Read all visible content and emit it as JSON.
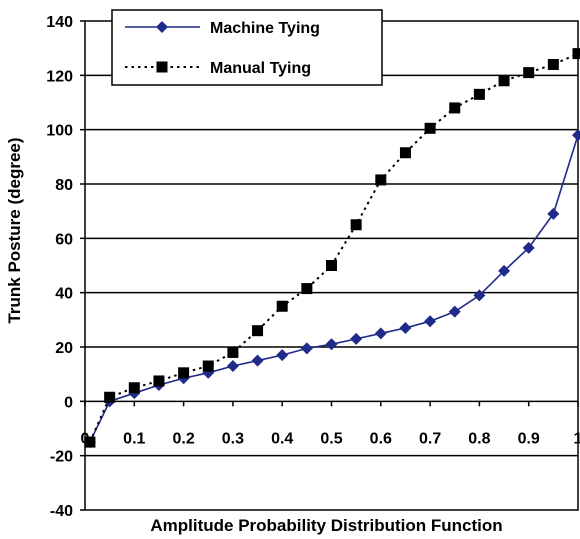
{
  "chart_data": {
    "type": "line",
    "title": "",
    "xlabel": "Amplitude Probability Distribution Function",
    "ylabel": "Trunk Posture (degree)",
    "xlim": [
      0,
      1
    ],
    "ylim": [
      -40,
      140
    ],
    "x_ticks": [
      "0",
      "0.1",
      "0.2",
      "0.3",
      "0.4",
      "0.5",
      "0.6",
      "0.7",
      "0.8",
      "0.9",
      "1"
    ],
    "y_ticks": [
      "-40",
      "-20",
      "0",
      "20",
      "40",
      "60",
      "80",
      "100",
      "120",
      "140"
    ],
    "grid": "horizontal major gridlines",
    "legend_position": "top-left",
    "series": [
      {
        "name": "Machine Tying",
        "marker": "diamond",
        "line_style": "solid",
        "color": "#1f2a8a",
        "x": [
          0.01,
          0.05,
          0.1,
          0.15,
          0.2,
          0.25,
          0.3,
          0.35,
          0.4,
          0.45,
          0.5,
          0.55,
          0.6,
          0.65,
          0.7,
          0.75,
          0.8,
          0.85,
          0.9,
          0.95,
          1.0
        ],
        "y": [
          -15,
          0,
          3,
          6,
          8.5,
          10.5,
          13,
          15,
          17,
          19.5,
          21,
          23,
          25,
          27,
          29.5,
          33,
          39,
          48,
          56.5,
          69,
          98
        ]
      },
      {
        "name": "Manual Tying",
        "marker": "square",
        "line_style": "dotted",
        "color": "#000000",
        "x": [
          0.01,
          0.05,
          0.1,
          0.15,
          0.2,
          0.25,
          0.3,
          0.35,
          0.4,
          0.45,
          0.5,
          0.55,
          0.6,
          0.65,
          0.7,
          0.75,
          0.8,
          0.85,
          0.9,
          0.95,
          1.0
        ],
        "y": [
          -15,
          1.5,
          5,
          7.5,
          10.5,
          13,
          18,
          26,
          35,
          41.5,
          50,
          65,
          81.5,
          91.5,
          100.5,
          108,
          113,
          118,
          121,
          124,
          128
        ]
      }
    ]
  }
}
